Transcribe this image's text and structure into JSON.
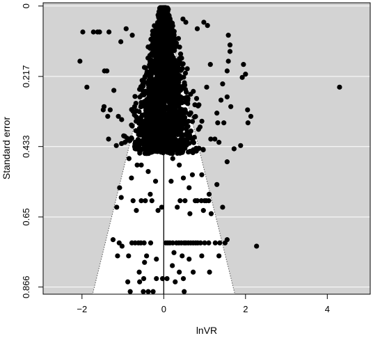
{
  "chart_data": {
    "type": "scatter",
    "title": "",
    "xlabel": "lnVR",
    "ylabel": "Standard error",
    "xlim": [
      -2.95,
      5.05
    ],
    "ylim": [
      0.888,
      -0.01
    ],
    "y_reversed": true,
    "x_ticks": [
      {
        "value": -2,
        "label": "−2"
      },
      {
        "value": 0,
        "label": "0"
      },
      {
        "value": 2,
        "label": "2"
      },
      {
        "value": 4,
        "label": "4"
      }
    ],
    "y_ticks": [
      {
        "value": 0,
        "label": "0"
      },
      {
        "value": 0.217,
        "label": "0.217"
      },
      {
        "value": 0.433,
        "label": "0.433"
      },
      {
        "value": 0.65,
        "label": "0.65"
      },
      {
        "value": 0.866,
        "label": "0.866"
      }
    ],
    "grid": "horizontal",
    "background_color": "#d3d3d3",
    "funnel": {
      "center": 0,
      "multiplier": 1.96,
      "fill": "#ffffff",
      "line_style": "dotted"
    },
    "reference_line_x": 0,
    "point_color": "#000000",
    "points": [
      [
        -1.98,
        0.08
      ],
      [
        -1.72,
        0.08
      ],
      [
        -1.62,
        0.08
      ],
      [
        -1.57,
        0.08
      ],
      [
        -1.34,
        0.08
      ],
      [
        -0.92,
        0.07
      ],
      [
        -0.77,
        0.09
      ],
      [
        -2.05,
        0.17
      ],
      [
        -1.88,
        0.25
      ],
      [
        -1.45,
        0.2
      ],
      [
        -1.39,
        0.2
      ],
      [
        -1.31,
        0.32
      ],
      [
        -1.22,
        0.26
      ],
      [
        -1.05,
        0.11
      ],
      [
        -1.03,
        0.35
      ],
      [
        -1.37,
        0.34
      ],
      [
        -1.46,
        0.31
      ],
      [
        -1.48,
        0.32
      ],
      [
        -0.98,
        0.4
      ],
      [
        -0.95,
        0.42
      ],
      [
        -1.11,
        0.34
      ],
      [
        -1.35,
        0.41
      ],
      [
        -1.16,
        0.43
      ],
      [
        -0.85,
        0.47
      ],
      [
        -0.65,
        0.49
      ],
      [
        -0.79,
        0.53
      ],
      [
        -0.55,
        0.49
      ],
      [
        -0.38,
        0.51
      ],
      [
        -0.2,
        0.54
      ],
      [
        -0.33,
        0.58
      ],
      [
        -1.08,
        0.56
      ],
      [
        -1.04,
        0.59
      ],
      [
        -0.75,
        0.6
      ],
      [
        -0.55,
        0.6
      ],
      [
        -0.45,
        0.6
      ],
      [
        -0.29,
        0.6
      ],
      [
        -1.15,
        0.62
      ],
      [
        -0.67,
        0.63
      ],
      [
        -0.14,
        0.63
      ],
      [
        -1.24,
        0.72
      ],
      [
        -1.09,
        0.73
      ],
      [
        -1.02,
        0.74
      ],
      [
        -0.78,
        0.73
      ],
      [
        -0.7,
        0.73
      ],
      [
        -0.62,
        0.73
      ],
      [
        -0.56,
        0.73
      ],
      [
        -0.48,
        0.73
      ],
      [
        -0.42,
        0.77
      ],
      [
        -0.32,
        0.73
      ],
      [
        -0.47,
        0.79
      ],
      [
        -0.18,
        0.78
      ],
      [
        -0.86,
        0.77
      ],
      [
        -1.13,
        0.77
      ],
      [
        -0.6,
        0.82
      ],
      [
        -0.88,
        0.85
      ],
      [
        -0.59,
        0.85
      ],
      [
        -0.49,
        0.84
      ],
      [
        -0.18,
        0.84
      ],
      [
        -0.03,
        0.84
      ],
      [
        -0.82,
        0.88
      ],
      [
        -0.5,
        0.88
      ],
      [
        -0.38,
        0.88
      ],
      [
        -0.26,
        0.88
      ],
      [
        0.5,
        0.88
      ],
      [
        -0.05,
        0.62
      ],
      [
        0.22,
        0.47
      ],
      [
        0.38,
        0.49
      ],
      [
        0.7,
        0.52
      ],
      [
        0.48,
        0.53
      ],
      [
        0.93,
        0.52
      ],
      [
        0.18,
        0.54
      ],
      [
        0.62,
        0.56
      ],
      [
        1.3,
        0.55
      ],
      [
        1.11,
        0.58
      ],
      [
        1.0,
        0.6
      ],
      [
        0.77,
        0.6
      ],
      [
        0.82,
        0.6
      ],
      [
        0.92,
        0.6
      ],
      [
        1.04,
        0.6
      ],
      [
        1.1,
        0.6
      ],
      [
        0.52,
        0.6
      ],
      [
        0.4,
        0.6
      ],
      [
        0.33,
        0.62
      ],
      [
        0.97,
        0.63
      ],
      [
        1.44,
        0.62
      ],
      [
        1.16,
        0.64
      ],
      [
        0.64,
        0.64
      ],
      [
        0.05,
        0.73
      ],
      [
        0.1,
        0.73
      ],
      [
        0.15,
        0.73
      ],
      [
        0.22,
        0.73
      ],
      [
        0.31,
        0.73
      ],
      [
        0.37,
        0.73
      ],
      [
        0.43,
        0.73
      ],
      [
        0.5,
        0.73
      ],
      [
        0.54,
        0.73
      ],
      [
        0.6,
        0.73
      ],
      [
        0.66,
        0.73
      ],
      [
        0.72,
        0.73
      ],
      [
        0.78,
        0.73
      ],
      [
        0.83,
        0.73
      ],
      [
        0.9,
        0.73
      ],
      [
        1.0,
        0.73
      ],
      [
        1.1,
        0.73
      ],
      [
        1.26,
        0.73
      ],
      [
        1.37,
        0.73
      ],
      [
        1.5,
        0.73
      ],
      [
        2.27,
        0.74
      ],
      [
        1.55,
        0.72
      ],
      [
        0.25,
        0.76
      ],
      [
        0.45,
        0.77
      ],
      [
        0.62,
        0.78
      ],
      [
        0.93,
        0.77
      ],
      [
        1.35,
        0.77
      ],
      [
        0.21,
        0.8
      ],
      [
        0.38,
        0.82
      ],
      [
        0.48,
        0.84
      ],
      [
        0.72,
        0.82
      ],
      [
        1.12,
        0.82
      ],
      [
        0.08,
        0.84
      ],
      [
        0.28,
        0.85
      ],
      [
        1.55,
        0.48
      ],
      [
        1.72,
        0.44
      ],
      [
        1.88,
        0.43
      ],
      [
        1.15,
        0.41
      ],
      [
        1.3,
        0.33
      ],
      [
        1.4,
        0.29
      ],
      [
        1.55,
        0.28
      ],
      [
        1.64,
        0.31
      ],
      [
        2.05,
        0.32
      ],
      [
        2.13,
        0.34
      ],
      [
        2.06,
        0.36
      ],
      [
        1.95,
        0.18
      ],
      [
        1.58,
        0.09
      ],
      [
        1.62,
        0.14
      ],
      [
        1.62,
        0.12
      ],
      [
        1.58,
        0.17
      ],
      [
        1.55,
        0.2
      ],
      [
        1.44,
        0.24
      ],
      [
        1.32,
        0.36
      ],
      [
        1.05,
        0.25
      ],
      [
        1.14,
        0.18
      ],
      [
        1.07,
        0.06
      ],
      [
        0.98,
        0.05
      ],
      [
        0.82,
        0.07
      ],
      [
        0.54,
        0.05
      ],
      [
        0.47,
        0.04
      ],
      [
        2.0,
        0.21
      ],
      [
        1.92,
        0.22
      ],
      [
        4.3,
        0.25
      ],
      [
        1.25,
        0.41
      ],
      [
        1.35,
        0.42
      ],
      [
        1.47,
        0.36
      ]
    ],
    "dense_cloud": {
      "points_approx": 2600,
      "center_x": 0.0,
      "se_range": [
        0.0,
        0.47
      ]
    }
  }
}
